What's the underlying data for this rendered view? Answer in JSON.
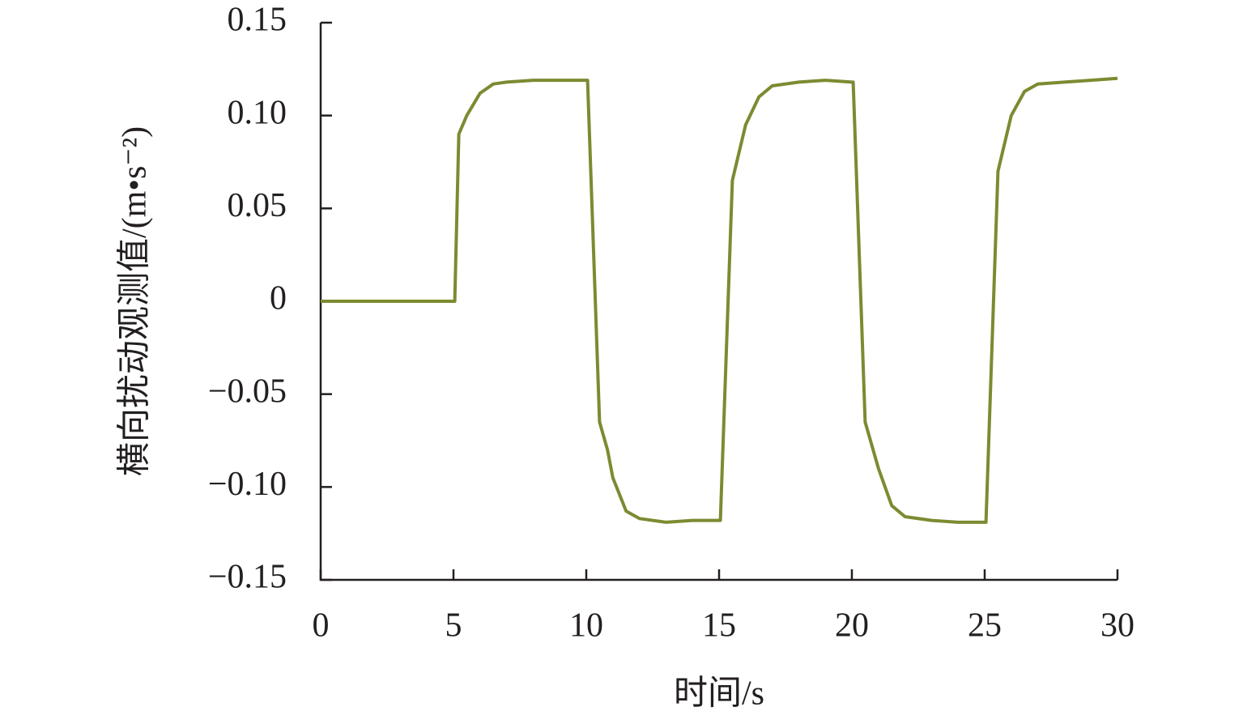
{
  "chart_data": {
    "type": "line",
    "x_label": "时间/s",
    "y_label": "横向扰动观测值/(m•s⁻²)",
    "x": [
      0,
      1,
      2,
      3,
      4,
      5,
      5.05,
      5.2,
      5.5,
      6,
      6.5,
      7,
      8,
      9,
      10,
      10.05,
      10.5,
      10.8,
      11,
      11.5,
      12,
      13,
      14,
      15,
      15.05,
      15.5,
      16,
      16.5,
      17,
      18,
      19,
      20,
      20.05,
      20.5,
      21,
      21.5,
      22,
      23,
      24,
      25,
      25.05,
      25.5,
      26,
      26.5,
      27,
      28,
      29,
      30
    ],
    "values": [
      0,
      0,
      0,
      0,
      0,
      0,
      0,
      0.09,
      0.1,
      0.112,
      0.117,
      0.118,
      0.119,
      0.119,
      0.119,
      0.119,
      -0.065,
      -0.08,
      -0.095,
      -0.113,
      -0.117,
      -0.119,
      -0.118,
      -0.118,
      -0.118,
      0.065,
      0.095,
      0.11,
      0.116,
      0.118,
      0.119,
      0.118,
      0.118,
      -0.065,
      -0.09,
      -0.11,
      -0.116,
      -0.118,
      -0.119,
      -0.119,
      -0.119,
      0.07,
      0.1,
      0.113,
      0.117,
      0.118,
      0.119,
      0.12
    ],
    "color": "#7b8b31",
    "xlim": [
      0,
      30
    ],
    "xticks": [
      0,
      5,
      10,
      15,
      20,
      25,
      30
    ],
    "ylim": [
      -0.15,
      0.15
    ],
    "yticks": [
      {
        "value": -0.15,
        "label": "−0.15"
      },
      {
        "value": -0.1,
        "label": "−0.10"
      },
      {
        "value": -0.05,
        "label": "−0.05"
      },
      0,
      0.05,
      {
        "value": 0.1,
        "label": "0.10"
      },
      0.15
    ]
  }
}
